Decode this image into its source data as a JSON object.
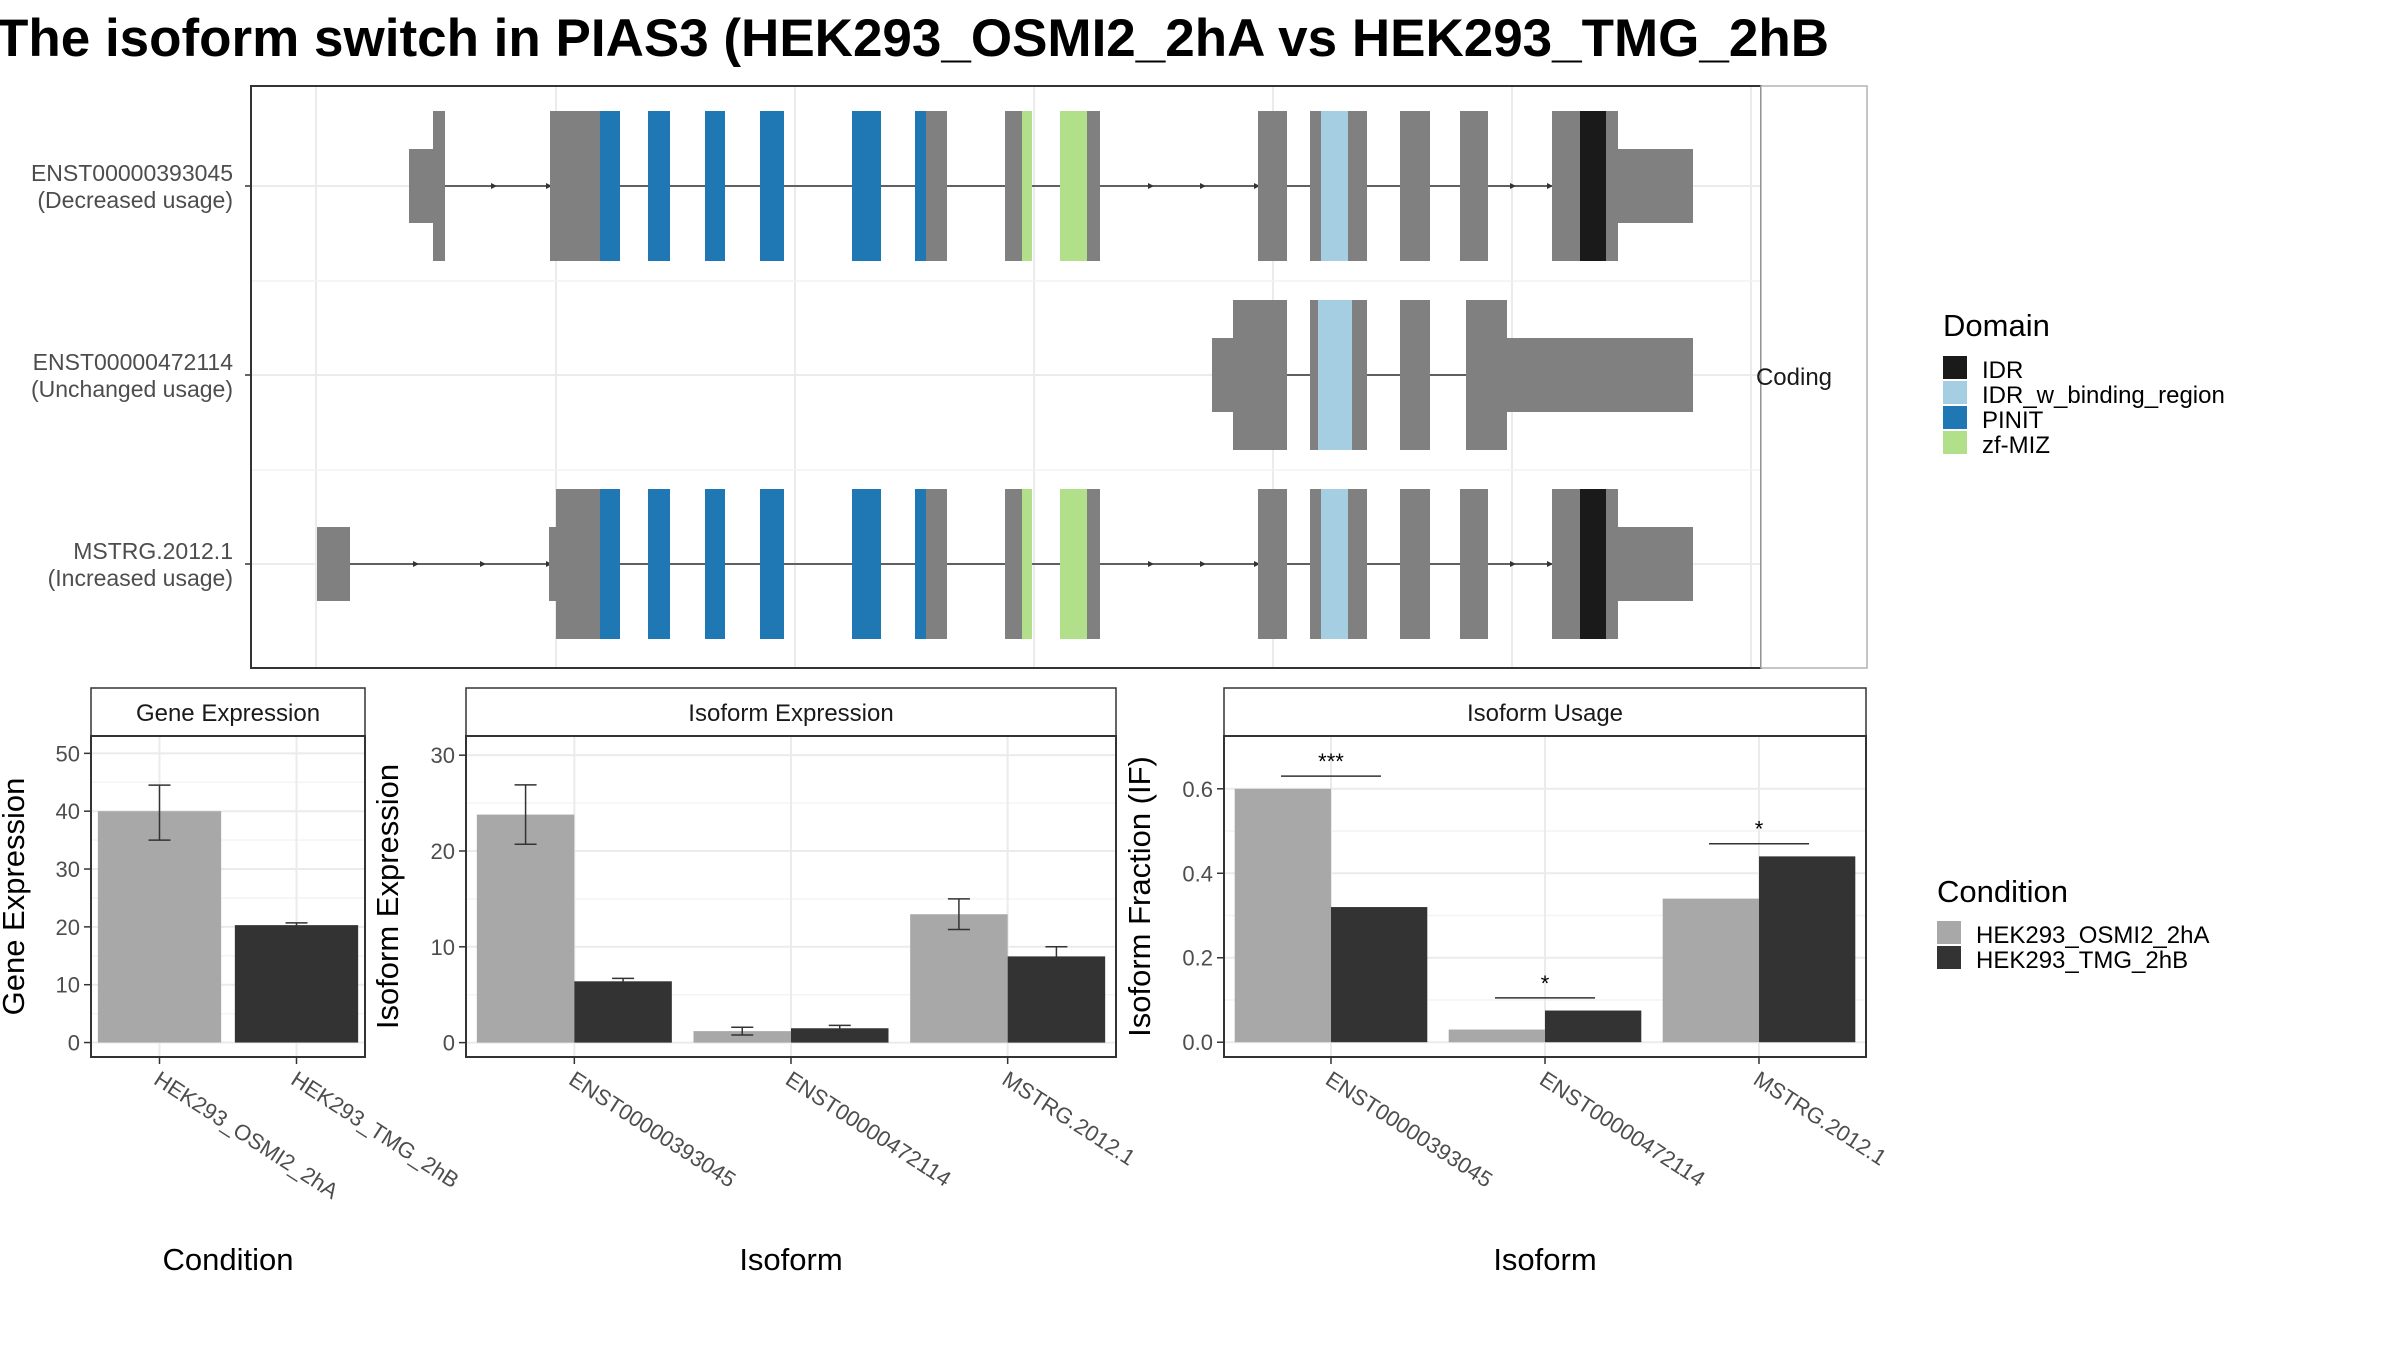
{
  "title": "The isoform switch in PIAS3 (HEK293_OSMI2_2hA vs HEK293_TMG_2hB",
  "colors": {
    "exon": "#808080",
    "IDR": "#1a1a1a",
    "IDR_w_binding_region": "#a6cee3",
    "PINIT": "#1f78b4",
    "zf-MIZ": "#b2df8a",
    "HEK293_OSMI2_2hA": "#a8a8a8",
    "HEK293_TMG_2hB": "#333333"
  },
  "transcripts": {
    "strip_label": "Coding",
    "rows": [
      {
        "id": "ENST00000393045",
        "usage": "(Decreased usage)"
      },
      {
        "id": "ENST00000472114",
        "usage": "(Unchanged usage)"
      },
      {
        "id": "MSTRG.2012.1",
        "usage": "(Increased usage)"
      }
    ]
  },
  "domain_legend": {
    "title": "Domain",
    "items": [
      {
        "name": "IDR",
        "color": "#1a1a1a"
      },
      {
        "name": "IDR_w_binding_region",
        "color": "#a6cee3"
      },
      {
        "name": "PINIT",
        "color": "#1f78b4"
      },
      {
        "name": "zf-MIZ",
        "color": "#b2df8a"
      }
    ]
  },
  "condition_legend": {
    "title": "Condition",
    "items": [
      {
        "name": "HEK293_OSMI2_2hA",
        "color": "#a8a8a8"
      },
      {
        "name": "HEK293_TMG_2hB",
        "color": "#333333"
      }
    ]
  },
  "chart_data": [
    {
      "type": "bar",
      "title": "Gene Expression",
      "xlabel": "Condition",
      "ylabel": "Gene Expression",
      "categories": [
        "HEK293_OSMI2_2hA",
        "HEK293_TMG_2hB"
      ],
      "series": [
        {
          "name": "HEK293_OSMI2_2hA",
          "values": [
            40,
            null
          ],
          "err": [
            [
              35,
              44.5
            ],
            null
          ]
        },
        {
          "name": "HEK293_TMG_2hB",
          "values": [
            null,
            20.3
          ],
          "err": [
            null,
            [
              19.9,
              20.7
            ]
          ]
        }
      ],
      "ylim": [
        -2.5,
        53
      ],
      "yticks": [
        0,
        10,
        20,
        30,
        40,
        50
      ]
    },
    {
      "type": "bar",
      "title": "Isoform Expression",
      "xlabel": "Isoform",
      "ylabel": "Isoform Expression",
      "categories": [
        "ENST00000393045",
        "ENST00000472114",
        "MSTRG.2012.1"
      ],
      "series": [
        {
          "name": "HEK293_OSMI2_2hA",
          "values": [
            23.8,
            1.2,
            13.4
          ],
          "err": [
            [
              20.7,
              26.9
            ],
            [
              0.8,
              1.6
            ],
            [
              11.8,
              15.0
            ]
          ]
        },
        {
          "name": "HEK293_TMG_2hB",
          "values": [
            6.4,
            1.5,
            9.0
          ],
          "err": [
            [
              6.1,
              6.7
            ],
            [
              1.2,
              1.8
            ],
            [
              8.0,
              10.0
            ]
          ]
        }
      ],
      "ylim": [
        -1.5,
        32
      ],
      "yticks": [
        0,
        10,
        20,
        30
      ]
    },
    {
      "type": "bar",
      "title": "Isoform Usage",
      "xlabel": "Isoform",
      "ylabel": "Isoform Fraction (IF)",
      "categories": [
        "ENST00000393045",
        "ENST00000472114",
        "MSTRG.2012.1"
      ],
      "series": [
        {
          "name": "HEK293_OSMI2_2hA",
          "values": [
            0.6,
            0.03,
            0.34
          ]
        },
        {
          "name": "HEK293_TMG_2hB",
          "values": [
            0.32,
            0.075,
            0.44
          ]
        }
      ],
      "significance": [
        "***",
        "*",
        "*"
      ],
      "ylim": [
        -0.035,
        0.725
      ],
      "yticks": [
        "0.0",
        "0.2",
        "0.4",
        "0.6"
      ]
    }
  ]
}
